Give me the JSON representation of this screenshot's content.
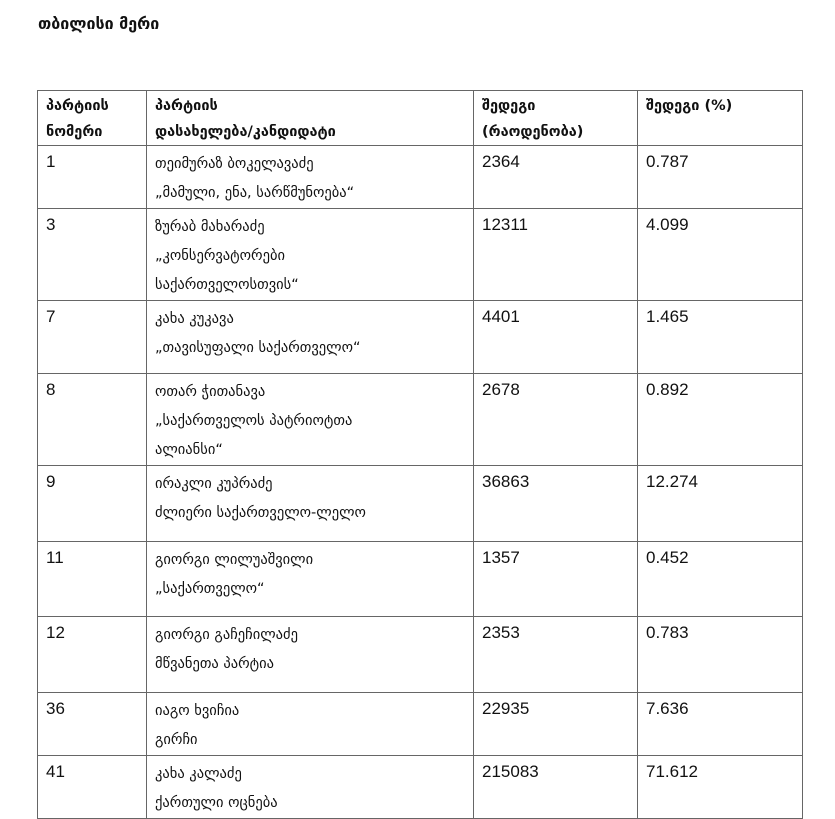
{
  "title": "თბილისი მერი",
  "table": {
    "headers": [
      [
        "პარტიის",
        "ნომერი"
      ],
      [
        "პარტიის",
        "დასახელება/კანდიდატი"
      ],
      [
        "შედეგი",
        "(რაოდენობა)"
      ],
      [
        "შედეგი (%)"
      ]
    ],
    "rows": [
      {
        "number": "1",
        "candidate": [
          "თეიმურაზ ბოკელავაძე",
          "„მამული, ენა, სარწმუნოება“"
        ],
        "votes": "2364",
        "percent": "0.787"
      },
      {
        "number": "3",
        "candidate": [
          "ზურაბ მახარაძე",
          "„კონსერვატორები",
          "საქართველოსთვის“"
        ],
        "votes": "12311",
        "percent": "4.099"
      },
      {
        "number": "7",
        "candidate": [
          "კახა კუკავა",
          "„თავისუფალი საქართველო“"
        ],
        "votes": "4401",
        "percent": "1.465"
      },
      {
        "number": "8",
        "candidate": [
          "ოთარ ჭითანავა",
          "„საქართველოს პატრიოტთა",
          "ალიანსი“"
        ],
        "votes": "2678",
        "percent": "0.892"
      },
      {
        "number": "9",
        "candidate": [
          "ირაკლი კუპრაძე",
          "ძლიერი საქართველო-ლელო"
        ],
        "votes": "36863",
        "percent": "12.274"
      },
      {
        "number": "11",
        "candidate": [
          "გიორგი ლილუაშვილი",
          "„საქართველო“"
        ],
        "votes": "1357",
        "percent": "0.452"
      },
      {
        "number": "12",
        "candidate": [
          "გიორგი გაჩეჩილაძე",
          "მწვანეთა პარტია"
        ],
        "votes": "2353",
        "percent": "0.783"
      },
      {
        "number": "36",
        "candidate": [
          "იაგო ხვიჩია",
          "გირჩი"
        ],
        "votes": "22935",
        "percent": "7.636"
      },
      {
        "number": "41",
        "candidate": [
          "კახა კალაძე",
          "ქართული ოცნება"
        ],
        "votes": "215083",
        "percent": "71.612"
      }
    ]
  }
}
